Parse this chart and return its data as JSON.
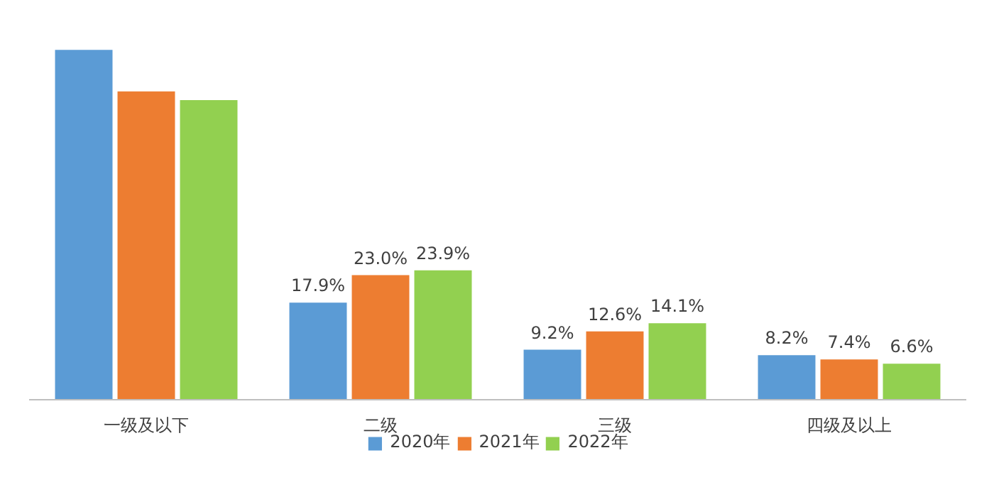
{
  "chart_data": {
    "type": "bar",
    "categories": [
      "一级及以下",
      "二级",
      "三级",
      "四级及以上"
    ],
    "series": [
      {
        "name": "2020年",
        "color": "#5b9bd5",
        "values": [
          64.7,
          17.9,
          9.2,
          8.2
        ],
        "value_labels": [
          null,
          "17.9%",
          "9.2%",
          "8.2%"
        ]
      },
      {
        "name": "2021年",
        "color": "#ed7d31",
        "values": [
          57.0,
          23.0,
          12.6,
          7.4
        ],
        "value_labels": [
          null,
          "23.0%",
          "12.6%",
          "7.4%"
        ]
      },
      {
        "name": "2022年",
        "color": "#92d050",
        "values": [
          55.4,
          23.9,
          14.1,
          6.6
        ],
        "value_labels": [
          null,
          "23.9%",
          "14.1%",
          "6.6%"
        ]
      }
    ],
    "legend": "bottom"
  }
}
